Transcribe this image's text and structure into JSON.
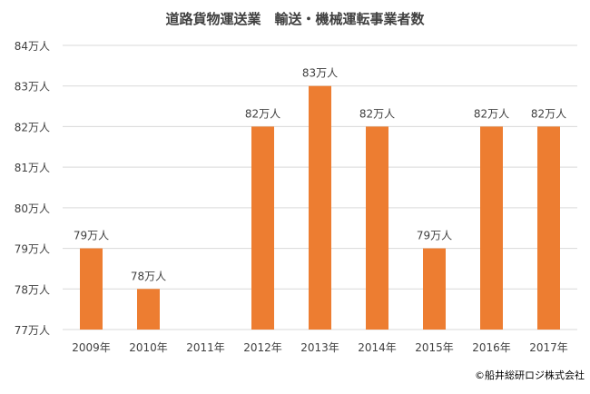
{
  "chart_data": {
    "type": "bar",
    "title": "道路貨物運送業　輸送・機械運転事業者数",
    "categories": [
      "2009年",
      "2010年",
      "2011年",
      "2012年",
      "2013年",
      "2014年",
      "2015年",
      "2016年",
      "2017年"
    ],
    "values": [
      79,
      78,
      null,
      82,
      83,
      82,
      79,
      82,
      82
    ],
    "data_labels": [
      "79万人",
      "78万人",
      "",
      "82万人",
      "83万人",
      "82万人",
      "79万人",
      "82万人",
      "82万人"
    ],
    "yticks": [
      77,
      78,
      79,
      80,
      81,
      82,
      83,
      84
    ],
    "ytick_labels": [
      "77万人",
      "78万人",
      "79万人",
      "80万人",
      "81万人",
      "82万人",
      "83万人",
      "84万人"
    ],
    "ylim": [
      77,
      84
    ],
    "xlabel": "",
    "ylabel": "",
    "grid": true,
    "legend": "none",
    "bar_color": "#ED7D31",
    "grid_color": "#D9D9D9"
  },
  "footer": {
    "copyright": "©船井総研ロジ株式会社"
  }
}
